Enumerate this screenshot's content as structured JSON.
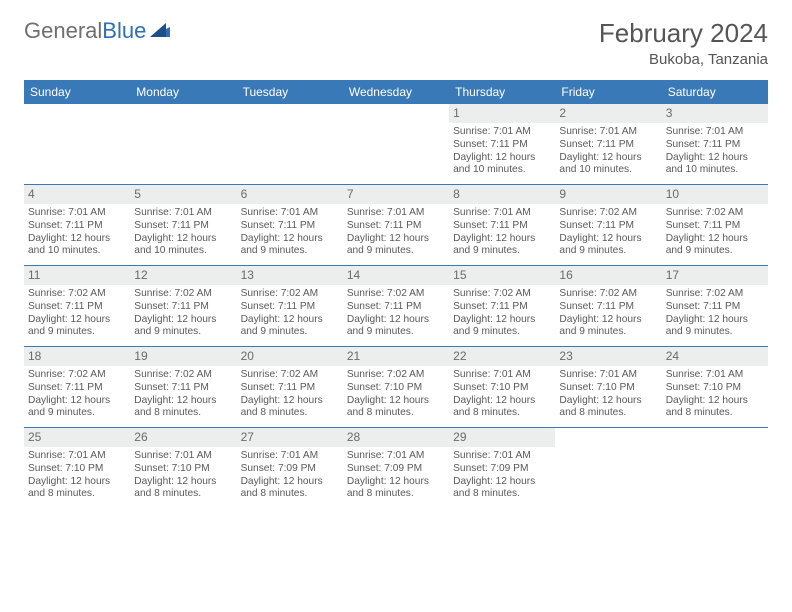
{
  "logo": {
    "textGray": "General",
    "textBlue": "Blue"
  },
  "title": "February 2024",
  "location": "Bukoba, Tanzania",
  "dow": [
    "Sunday",
    "Monday",
    "Tuesday",
    "Wednesday",
    "Thursday",
    "Friday",
    "Saturday"
  ],
  "colors": {
    "header_bg": "#3a79b7",
    "header_text": "#ffffff",
    "daynum_bg": "#eceded",
    "rule": "#3a79b7",
    "body_text": "#5a5a5a"
  },
  "weeks": [
    [
      {
        "n": "",
        "sr": "",
        "ss": "",
        "dl": ""
      },
      {
        "n": "",
        "sr": "",
        "ss": "",
        "dl": ""
      },
      {
        "n": "",
        "sr": "",
        "ss": "",
        "dl": ""
      },
      {
        "n": "",
        "sr": "",
        "ss": "",
        "dl": ""
      },
      {
        "n": "1",
        "sr": "Sunrise: 7:01 AM",
        "ss": "Sunset: 7:11 PM",
        "dl": "Daylight: 12 hours and 10 minutes."
      },
      {
        "n": "2",
        "sr": "Sunrise: 7:01 AM",
        "ss": "Sunset: 7:11 PM",
        "dl": "Daylight: 12 hours and 10 minutes."
      },
      {
        "n": "3",
        "sr": "Sunrise: 7:01 AM",
        "ss": "Sunset: 7:11 PM",
        "dl": "Daylight: 12 hours and 10 minutes."
      }
    ],
    [
      {
        "n": "4",
        "sr": "Sunrise: 7:01 AM",
        "ss": "Sunset: 7:11 PM",
        "dl": "Daylight: 12 hours and 10 minutes."
      },
      {
        "n": "5",
        "sr": "Sunrise: 7:01 AM",
        "ss": "Sunset: 7:11 PM",
        "dl": "Daylight: 12 hours and 10 minutes."
      },
      {
        "n": "6",
        "sr": "Sunrise: 7:01 AM",
        "ss": "Sunset: 7:11 PM",
        "dl": "Daylight: 12 hours and 9 minutes."
      },
      {
        "n": "7",
        "sr": "Sunrise: 7:01 AM",
        "ss": "Sunset: 7:11 PM",
        "dl": "Daylight: 12 hours and 9 minutes."
      },
      {
        "n": "8",
        "sr": "Sunrise: 7:01 AM",
        "ss": "Sunset: 7:11 PM",
        "dl": "Daylight: 12 hours and 9 minutes."
      },
      {
        "n": "9",
        "sr": "Sunrise: 7:02 AM",
        "ss": "Sunset: 7:11 PM",
        "dl": "Daylight: 12 hours and 9 minutes."
      },
      {
        "n": "10",
        "sr": "Sunrise: 7:02 AM",
        "ss": "Sunset: 7:11 PM",
        "dl": "Daylight: 12 hours and 9 minutes."
      }
    ],
    [
      {
        "n": "11",
        "sr": "Sunrise: 7:02 AM",
        "ss": "Sunset: 7:11 PM",
        "dl": "Daylight: 12 hours and 9 minutes."
      },
      {
        "n": "12",
        "sr": "Sunrise: 7:02 AM",
        "ss": "Sunset: 7:11 PM",
        "dl": "Daylight: 12 hours and 9 minutes."
      },
      {
        "n": "13",
        "sr": "Sunrise: 7:02 AM",
        "ss": "Sunset: 7:11 PM",
        "dl": "Daylight: 12 hours and 9 minutes."
      },
      {
        "n": "14",
        "sr": "Sunrise: 7:02 AM",
        "ss": "Sunset: 7:11 PM",
        "dl": "Daylight: 12 hours and 9 minutes."
      },
      {
        "n": "15",
        "sr": "Sunrise: 7:02 AM",
        "ss": "Sunset: 7:11 PM",
        "dl": "Daylight: 12 hours and 9 minutes."
      },
      {
        "n": "16",
        "sr": "Sunrise: 7:02 AM",
        "ss": "Sunset: 7:11 PM",
        "dl": "Daylight: 12 hours and 9 minutes."
      },
      {
        "n": "17",
        "sr": "Sunrise: 7:02 AM",
        "ss": "Sunset: 7:11 PM",
        "dl": "Daylight: 12 hours and 9 minutes."
      }
    ],
    [
      {
        "n": "18",
        "sr": "Sunrise: 7:02 AM",
        "ss": "Sunset: 7:11 PM",
        "dl": "Daylight: 12 hours and 9 minutes."
      },
      {
        "n": "19",
        "sr": "Sunrise: 7:02 AM",
        "ss": "Sunset: 7:11 PM",
        "dl": "Daylight: 12 hours and 8 minutes."
      },
      {
        "n": "20",
        "sr": "Sunrise: 7:02 AM",
        "ss": "Sunset: 7:11 PM",
        "dl": "Daylight: 12 hours and 8 minutes."
      },
      {
        "n": "21",
        "sr": "Sunrise: 7:02 AM",
        "ss": "Sunset: 7:10 PM",
        "dl": "Daylight: 12 hours and 8 minutes."
      },
      {
        "n": "22",
        "sr": "Sunrise: 7:01 AM",
        "ss": "Sunset: 7:10 PM",
        "dl": "Daylight: 12 hours and 8 minutes."
      },
      {
        "n": "23",
        "sr": "Sunrise: 7:01 AM",
        "ss": "Sunset: 7:10 PM",
        "dl": "Daylight: 12 hours and 8 minutes."
      },
      {
        "n": "24",
        "sr": "Sunrise: 7:01 AM",
        "ss": "Sunset: 7:10 PM",
        "dl": "Daylight: 12 hours and 8 minutes."
      }
    ],
    [
      {
        "n": "25",
        "sr": "Sunrise: 7:01 AM",
        "ss": "Sunset: 7:10 PM",
        "dl": "Daylight: 12 hours and 8 minutes."
      },
      {
        "n": "26",
        "sr": "Sunrise: 7:01 AM",
        "ss": "Sunset: 7:10 PM",
        "dl": "Daylight: 12 hours and 8 minutes."
      },
      {
        "n": "27",
        "sr": "Sunrise: 7:01 AM",
        "ss": "Sunset: 7:09 PM",
        "dl": "Daylight: 12 hours and 8 minutes."
      },
      {
        "n": "28",
        "sr": "Sunrise: 7:01 AM",
        "ss": "Sunset: 7:09 PM",
        "dl": "Daylight: 12 hours and 8 minutes."
      },
      {
        "n": "29",
        "sr": "Sunrise: 7:01 AM",
        "ss": "Sunset: 7:09 PM",
        "dl": "Daylight: 12 hours and 8 minutes."
      },
      {
        "n": "",
        "sr": "",
        "ss": "",
        "dl": ""
      },
      {
        "n": "",
        "sr": "",
        "ss": "",
        "dl": ""
      }
    ]
  ]
}
